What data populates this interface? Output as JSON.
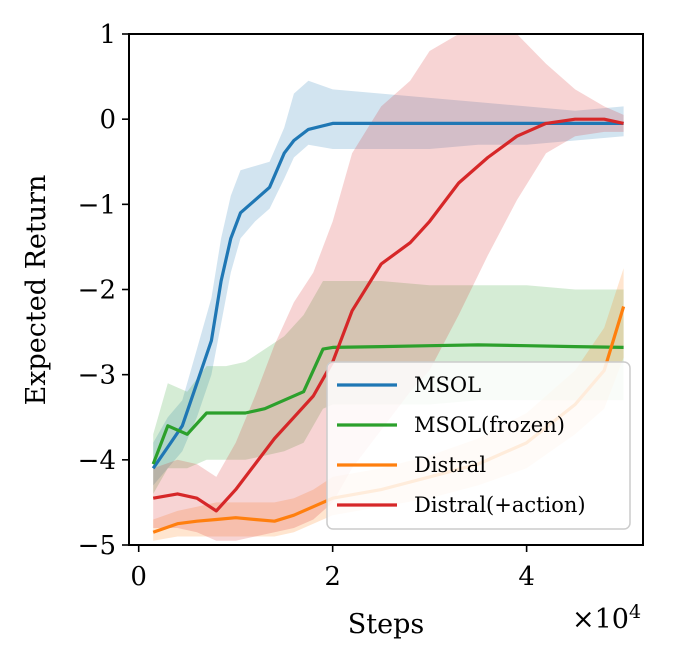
{
  "chart_data": {
    "type": "line",
    "xlabel": "Steps",
    "ylabel": "Expected Return",
    "x_multiplier": "×10",
    "x_multiplier_exp": "4",
    "xlim": [
      -0.1,
      5.2
    ],
    "ylim": [
      -5,
      1
    ],
    "xticks": [
      0,
      2,
      4
    ],
    "xtick_labels": [
      "0",
      "2",
      "4"
    ],
    "yticks": [
      1,
      0,
      -1,
      -2,
      -3,
      -4,
      -5
    ],
    "ytick_labels": [
      "1",
      "0",
      "−1",
      "−2",
      "−3",
      "−4",
      "−5"
    ],
    "grid": false,
    "legend_position": "lower-right",
    "series": [
      {
        "name": "MSOL",
        "color": "#1f77b4",
        "x": [
          0.15,
          0.3,
          0.45,
          0.6,
          0.75,
          0.85,
          0.95,
          1.05,
          1.2,
          1.35,
          1.5,
          1.6,
          1.75,
          2.0,
          2.5,
          3.0,
          3.5,
          4.0,
          4.5,
          5.0
        ],
        "y": [
          -4.1,
          -3.85,
          -3.6,
          -3.1,
          -2.6,
          -1.9,
          -1.4,
          -1.1,
          -0.95,
          -0.8,
          -0.4,
          -0.25,
          -0.12,
          -0.05,
          -0.05,
          -0.05,
          -0.05,
          -0.05,
          -0.05,
          -0.05
        ],
        "lower": [
          -4.3,
          -4.1,
          -3.9,
          -3.5,
          -3.0,
          -2.4,
          -1.8,
          -1.4,
          -1.2,
          -1.05,
          -0.7,
          -0.45,
          -0.3,
          -0.35,
          -0.35,
          -0.35,
          -0.3,
          -0.3,
          -0.25,
          -0.2
        ],
        "upper": [
          -3.8,
          -3.5,
          -3.3,
          -2.7,
          -2.1,
          -1.4,
          -0.9,
          -0.6,
          -0.55,
          -0.5,
          -0.1,
          0.3,
          0.45,
          0.35,
          0.3,
          0.25,
          0.2,
          0.15,
          0.1,
          0.15
        ]
      },
      {
        "name": "MSOL(frozen)",
        "color": "#2ca02c",
        "x": [
          0.15,
          0.3,
          0.5,
          0.7,
          0.9,
          1.1,
          1.3,
          1.5,
          1.7,
          1.9,
          2.0,
          2.5,
          3.0,
          3.5,
          4.0,
          4.5,
          5.0
        ],
        "y": [
          -4.05,
          -3.6,
          -3.7,
          -3.45,
          -3.45,
          -3.45,
          -3.4,
          -3.3,
          -3.2,
          -2.7,
          -2.68,
          -2.67,
          -2.66,
          -2.65,
          -2.66,
          -2.67,
          -2.68
        ],
        "lower": [
          -4.4,
          -4.1,
          -4.1,
          -4.0,
          -4.0,
          -4.0,
          -3.95,
          -3.9,
          -3.8,
          -3.4,
          -3.35,
          -3.35,
          -3.35,
          -3.3,
          -3.3,
          -3.3,
          -3.3
        ],
        "upper": [
          -3.7,
          -3.1,
          -3.2,
          -2.9,
          -2.9,
          -2.85,
          -2.7,
          -2.55,
          -2.3,
          -1.9,
          -1.9,
          -1.9,
          -1.95,
          -1.95,
          -1.95,
          -2.0,
          -2.0
        ]
      },
      {
        "name": "Distral",
        "color": "#ff7f0e",
        "x": [
          0.15,
          0.4,
          0.6,
          0.8,
          1.0,
          1.2,
          1.4,
          1.6,
          1.8,
          2.0,
          2.5,
          3.0,
          3.5,
          4.0,
          4.5,
          4.8,
          5.0
        ],
        "y": [
          -4.85,
          -4.75,
          -4.72,
          -4.7,
          -4.68,
          -4.7,
          -4.72,
          -4.65,
          -4.55,
          -4.45,
          -4.35,
          -4.2,
          -4.05,
          -3.8,
          -3.35,
          -2.95,
          -2.2
        ],
        "lower": [
          -4.95,
          -4.9,
          -4.9,
          -4.9,
          -4.9,
          -4.9,
          -4.9,
          -4.85,
          -4.75,
          -4.65,
          -4.55,
          -4.45,
          -4.3,
          -4.1,
          -3.7,
          -3.4,
          -2.8
        ],
        "upper": [
          -4.7,
          -4.6,
          -4.55,
          -4.5,
          -4.5,
          -4.5,
          -4.5,
          -4.45,
          -4.35,
          -4.2,
          -4.1,
          -3.95,
          -3.75,
          -3.45,
          -2.95,
          -2.45,
          -1.75
        ]
      },
      {
        "name": "Distral(+action)",
        "color": "#d62728",
        "x": [
          0.15,
          0.4,
          0.6,
          0.8,
          1.0,
          1.2,
          1.4,
          1.6,
          1.8,
          2.0,
          2.2,
          2.5,
          2.8,
          3.0,
          3.3,
          3.6,
          3.9,
          4.2,
          4.5,
          4.8,
          5.0
        ],
        "y": [
          -4.45,
          -4.4,
          -4.45,
          -4.6,
          -4.35,
          -4.05,
          -3.75,
          -3.5,
          -3.25,
          -2.85,
          -2.25,
          -1.7,
          -1.45,
          -1.2,
          -0.75,
          -0.45,
          -0.2,
          -0.05,
          0.0,
          0.0,
          -0.05
        ],
        "lower": [
          -4.8,
          -4.8,
          -4.85,
          -4.95,
          -4.95,
          -4.9,
          -4.85,
          -4.8,
          -4.7,
          -4.5,
          -4.1,
          -3.65,
          -3.2,
          -2.95,
          -2.3,
          -1.6,
          -0.95,
          -0.4,
          -0.2,
          -0.15,
          -0.15
        ],
        "upper": [
          -4.1,
          -4.0,
          -4.05,
          -4.2,
          -3.8,
          -3.25,
          -2.65,
          -2.15,
          -1.8,
          -1.2,
          -0.4,
          0.15,
          0.45,
          0.8,
          1.0,
          1.0,
          1.0,
          0.65,
          0.35,
          0.15,
          0.05
        ]
      }
    ]
  }
}
